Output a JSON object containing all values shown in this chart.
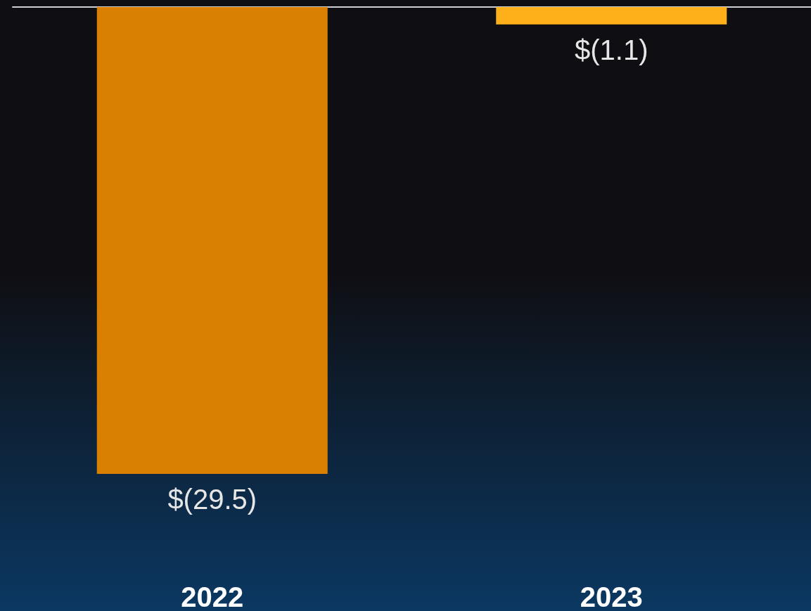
{
  "chart_data": {
    "type": "bar",
    "categories": [
      "2022",
      "2023"
    ],
    "values": [
      -29.5,
      -1.1
    ],
    "colors": [
      "#d97f02",
      "#fdb01a"
    ],
    "value_labels": [
      "$(29.5)",
      "$(1.1)"
    ]
  }
}
